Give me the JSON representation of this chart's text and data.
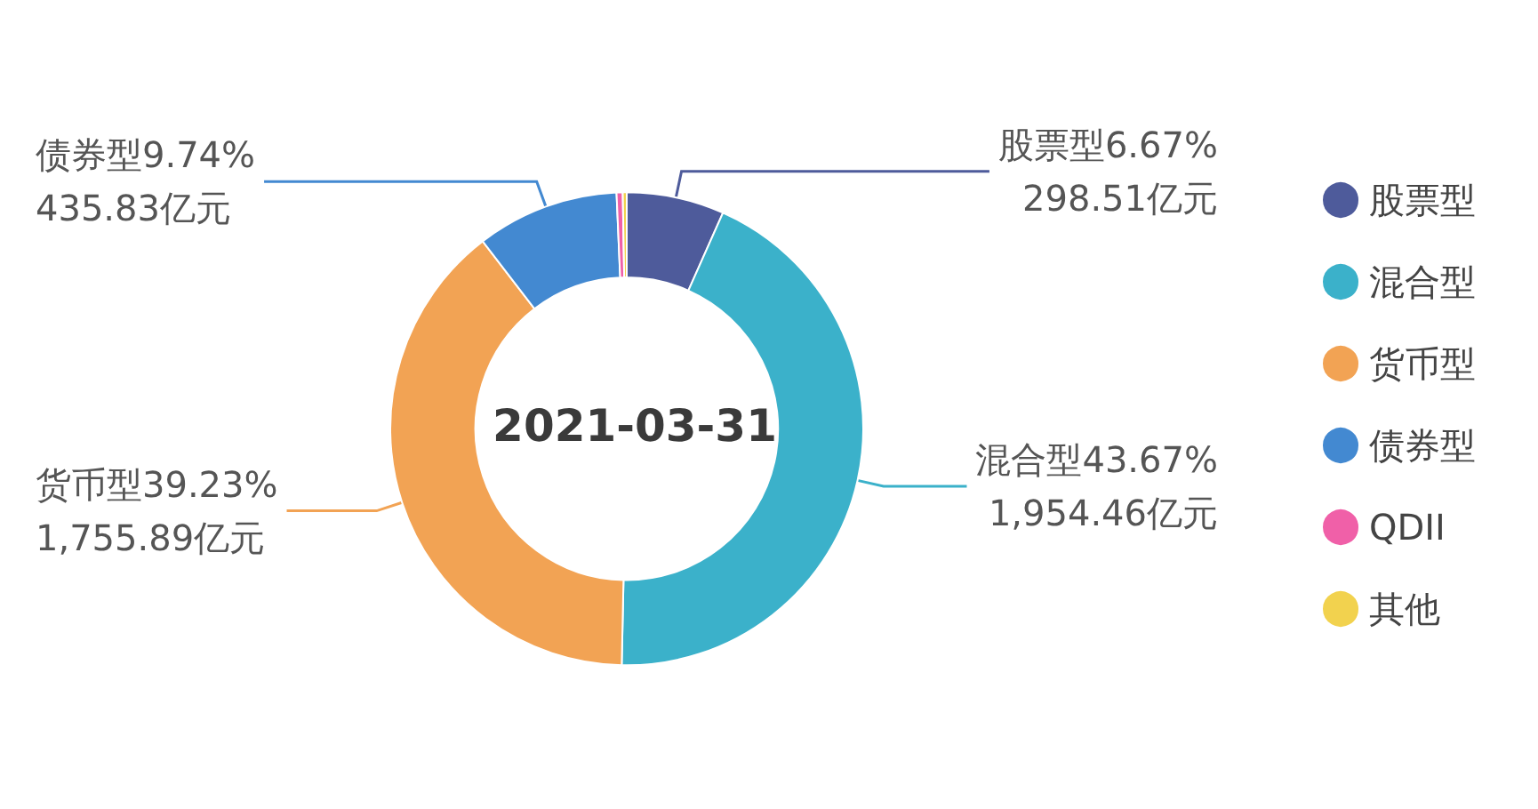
{
  "chart_data": {
    "type": "donut",
    "title": "2021-03-31",
    "categories": [
      "股票型",
      "混合型",
      "货币型",
      "债券型",
      "QDII",
      "其他"
    ],
    "values": [
      6.67,
      43.67,
      39.23,
      9.74,
      0.42,
      0.27
    ],
    "value_labels": [
      "6.67%\n298.51亿元",
      "43.67%\n1,954.46亿元",
      "39.23%\n1,755.89亿元",
      "9.74%\n435.83亿元",
      null,
      null
    ],
    "colors": [
      "#4e5b9b",
      "#3bb1ca",
      "#f2a354",
      "#4389d1",
      "#f060a8",
      "#f2d24e"
    ],
    "legend": "right"
  }
}
